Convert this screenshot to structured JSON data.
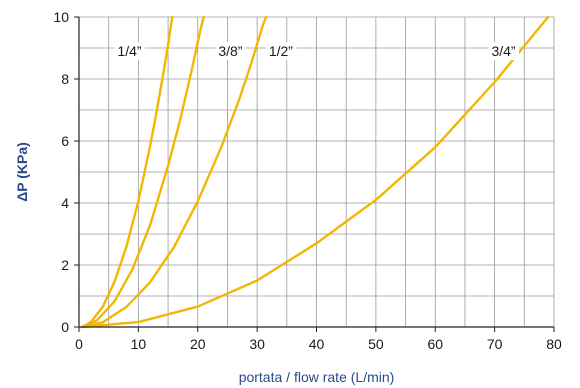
{
  "chart_data": {
    "type": "line",
    "title": "",
    "xlabel": "portata / flow rate (L/min)",
    "ylabel": "ΔP (KPa)",
    "xlim": [
      0,
      80
    ],
    "ylim": [
      0,
      10
    ],
    "x_ticks": [
      "0",
      "10",
      "20",
      "30",
      "40",
      "50",
      "60",
      "70",
      "80"
    ],
    "y_ticks": [
      "0",
      "2",
      "4",
      "6",
      "8",
      "10"
    ],
    "x_tick_values": [
      0,
      10,
      20,
      30,
      40,
      50,
      60,
      70,
      80
    ],
    "y_tick_values": [
      0,
      2,
      4,
      6,
      8,
      10
    ],
    "grid": true,
    "legend": "inline labels",
    "line_color": "#f2b705",
    "series": [
      {
        "name": "1/4”",
        "points": [
          [
            0.5,
            0.0
          ],
          [
            2,
            0.16
          ],
          [
            4,
            0.65
          ],
          [
            6,
            1.47
          ],
          [
            8,
            2.6
          ],
          [
            10,
            4.06
          ],
          [
            12,
            5.86
          ],
          [
            13,
            6.87
          ],
          [
            14,
            7.96
          ],
          [
            15,
            9.1
          ],
          [
            15.7,
            10.0
          ]
        ]
      },
      {
        "name": "3/8”",
        "points": [
          [
            0.5,
            0.0
          ],
          [
            3,
            0.21
          ],
          [
            6,
            0.83
          ],
          [
            9,
            1.86
          ],
          [
            12,
            3.3
          ],
          [
            15,
            5.2
          ],
          [
            17,
            6.65
          ],
          [
            19,
            8.3
          ],
          [
            20.4,
            9.55
          ],
          [
            21,
            10.0
          ]
        ]
      },
      {
        "name": "1/2”",
        "points": [
          [
            0.5,
            0.0
          ],
          [
            4,
            0.15
          ],
          [
            8,
            0.65
          ],
          [
            12,
            1.45
          ],
          [
            16,
            2.58
          ],
          [
            20,
            4.05
          ],
          [
            24,
            5.82
          ],
          [
            27,
            7.35
          ],
          [
            29,
            8.5
          ],
          [
            31,
            9.75
          ],
          [
            31.5,
            10.0
          ]
        ]
      },
      {
        "name": "3/4”",
        "points": [
          [
            0.5,
            0.0
          ],
          [
            10,
            0.16
          ],
          [
            20,
            0.66
          ],
          [
            30,
            1.5
          ],
          [
            40,
            2.7
          ],
          [
            50,
            4.1
          ],
          [
            60,
            5.8
          ],
          [
            70,
            7.9
          ],
          [
            76,
            9.3
          ],
          [
            79,
            10.0
          ]
        ]
      }
    ],
    "series_label_positions": [
      [
        8.5,
        8.9
      ],
      [
        25.5,
        8.9
      ],
      [
        34.0,
        8.9
      ],
      [
        71.5,
        8.9
      ]
    ]
  }
}
